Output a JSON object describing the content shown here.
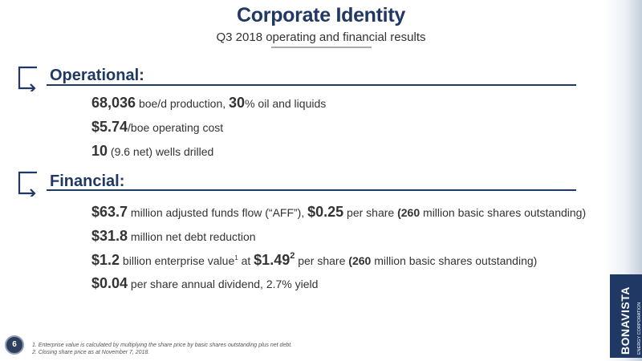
{
  "header": {
    "title": "Corporate Identity",
    "subtitle": "Q3 2018 operating and financial results"
  },
  "sections": {
    "operational": {
      "heading": "Operational:",
      "items": [
        {
          "parts": [
            {
              "text": "68,036",
              "style": "big"
            },
            {
              "text": " boe/d production, ",
              "style": "normal"
            },
            {
              "text": "30",
              "style": "big"
            },
            {
              "text": "% oil and liquids",
              "style": "normal"
            }
          ]
        },
        {
          "parts": [
            {
              "text": "$5.74",
              "style": "big"
            },
            {
              "text": "/boe operating cost",
              "style": "normal"
            }
          ]
        },
        {
          "parts": [
            {
              "text": "10",
              "style": "big"
            },
            {
              "text": " (9.6 net) wells drilled",
              "style": "normal"
            }
          ]
        }
      ]
    },
    "financial": {
      "heading": "Financial:",
      "items": [
        {
          "parts": [
            {
              "text": "$63.7",
              "style": "big"
            },
            {
              "text": " million adjusted funds flow (“AFF”), ",
              "style": "normal"
            },
            {
              "text": "$0.25",
              "style": "big"
            },
            {
              "text": " per share ",
              "style": "normal"
            },
            {
              "text": "(260",
              "style": "mid"
            },
            {
              "text": " million basic shares outstanding)",
              "style": "normal"
            }
          ]
        },
        {
          "parts": [
            {
              "text": "$31.8",
              "style": "big"
            },
            {
              "text": " million net debt reduction",
              "style": "normal"
            }
          ]
        },
        {
          "parts": [
            {
              "text": "$1.2",
              "style": "big"
            },
            {
              "text": " billion enterprise value",
              "style": "normal"
            },
            {
              "text": "1",
              "style": "sup-small"
            },
            {
              "text": " at ",
              "style": "normal"
            },
            {
              "text": "$1.49",
              "style": "big"
            },
            {
              "text": "2",
              "style": "sup-big"
            },
            {
              "text": " per share ",
              "style": "normal"
            },
            {
              "text": "(260",
              "style": "mid"
            },
            {
              "text": " million basic shares outstanding)",
              "style": "normal"
            }
          ]
        },
        {
          "parts": [
            {
              "text": "$0.04",
              "style": "big"
            },
            {
              "text": " per share annual dividend, 2.7% yield",
              "style": "normal"
            }
          ]
        }
      ]
    }
  },
  "footer": {
    "page_number": "6",
    "footnotes": [
      "1. Enterprise value is calculated by multiplying the share price by basic shares outstanding plus net debt.",
      "2. Closing share price as at November 7, 2018."
    ]
  },
  "brand": {
    "logo_name": "BONAVISTA",
    "logo_subtitle": "ENERGY CORPORATION",
    "primary_color": "#1f3864"
  }
}
